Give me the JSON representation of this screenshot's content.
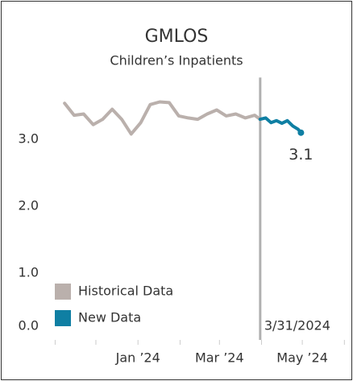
{
  "chart_data": {
    "type": "line",
    "title": "GMLOS",
    "subtitle": "Children’s Inpatients",
    "series": [
      {
        "name": "Historical Data",
        "color": "#bab0ac",
        "x": [
          "2023-11-08",
          "2023-11-15",
          "2023-11-22",
          "2023-11-29",
          "2023-12-06",
          "2023-12-13",
          "2023-12-20",
          "2023-12-27",
          "2024-01-03",
          "2024-01-10",
          "2024-01-17",
          "2024-01-24",
          "2024-01-31",
          "2024-02-07",
          "2024-02-14",
          "2024-02-21",
          "2024-02-28",
          "2024-03-06",
          "2024-03-13",
          "2024-03-20",
          "2024-03-27",
          "2024-03-31"
        ],
        "values": [
          3.54,
          3.36,
          3.38,
          3.22,
          3.3,
          3.45,
          3.3,
          3.08,
          3.25,
          3.52,
          3.56,
          3.55,
          3.35,
          3.32,
          3.3,
          3.38,
          3.44,
          3.35,
          3.38,
          3.32,
          3.36,
          3.3
        ]
      },
      {
        "name": "New Data",
        "color": "#0f7fa3",
        "x": [
          "2024-03-31",
          "2024-04-04",
          "2024-04-08",
          "2024-04-12",
          "2024-04-16",
          "2024-04-20",
          "2024-04-24",
          "2024-04-28",
          "2024-04-30"
        ],
        "values": [
          3.3,
          3.32,
          3.25,
          3.28,
          3.24,
          3.28,
          3.2,
          3.15,
          3.1
        ]
      }
    ],
    "xlim": [
      "2023-10-27",
      "2024-06-02"
    ],
    "xticks": [
      {
        "value": "2024-01-01",
        "label": "Jan ’24"
      },
      {
        "value": "2024-03-01",
        "label": "Mar ’24"
      },
      {
        "value": "2024-05-01",
        "label": "May ’24"
      }
    ],
    "xminorticks": [
      "2023-11-01",
      "2023-12-01",
      "2024-02-01",
      "2024-04-01",
      "2024-06-01"
    ],
    "ylim": [
      0,
      3.9
    ],
    "yticks": [
      {
        "value": 0,
        "label": "0.0"
      },
      {
        "value": 1,
        "label": "1.0"
      },
      {
        "value": 2,
        "label": "2.0"
      },
      {
        "value": 3,
        "label": "3.0"
      }
    ],
    "annotations": [
      {
        "x": "2024-03-31",
        "label": "3/31/2024",
        "color": "#b0b0b0"
      }
    ],
    "legend": "lower left",
    "grid": false
  }
}
